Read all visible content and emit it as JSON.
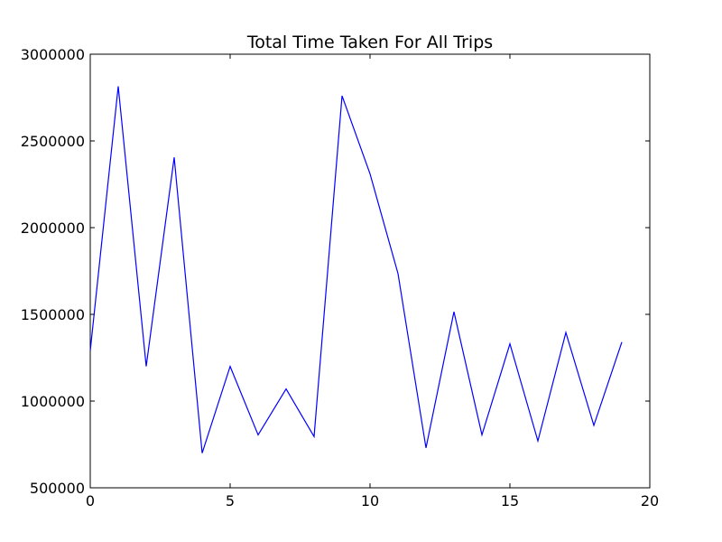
{
  "chart_data": {
    "type": "line",
    "title": "Total Time Taken For All Trips",
    "xlabel": "",
    "ylabel": "",
    "xlim": [
      0,
      20
    ],
    "ylim": [
      500000,
      3000000
    ],
    "x_ticks": [
      0,
      5,
      10,
      15,
      20
    ],
    "x_tick_labels": [
      "0",
      "5",
      "10",
      "15",
      "20"
    ],
    "y_ticks": [
      500000,
      1000000,
      1500000,
      2000000,
      2500000,
      3000000
    ],
    "y_tick_labels": [
      "500000",
      "1000000",
      "1500000",
      "2000000",
      "2500000",
      "3000000"
    ],
    "grid": false,
    "series": [
      {
        "color": "#0000ff",
        "x": [
          0,
          1,
          2,
          3,
          4,
          5,
          6,
          7,
          8,
          9,
          10,
          11,
          12,
          13,
          14,
          15,
          16,
          17,
          18,
          19
        ],
        "y": [
          1290000,
          2815000,
          1200000,
          2405000,
          700000,
          1200000,
          805000,
          1070000,
          795000,
          2760000,
          2310000,
          1735000,
          730000,
          1515000,
          805000,
          1330000,
          770000,
          1395000,
          860000,
          1340000
        ]
      }
    ]
  }
}
